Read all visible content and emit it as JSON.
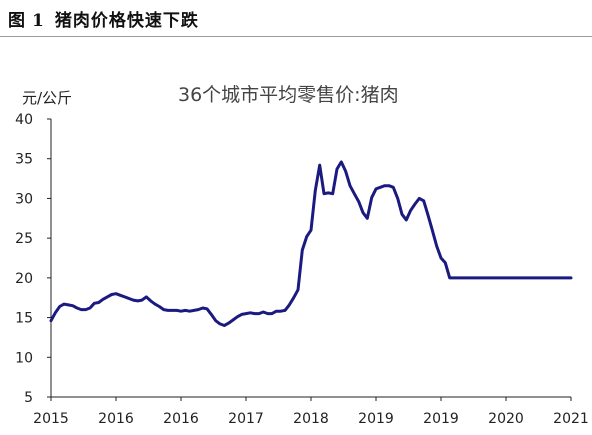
{
  "caption": {
    "label": "图",
    "number": "1",
    "text": "猪肉价格快速下跌"
  },
  "chart_data": {
    "type": "line",
    "title": "36个城市平均零售价:猪肉",
    "ylabel": "元/公斤",
    "xlabel": "",
    "ylim": [
      5,
      40
    ],
    "yticks": [
      5,
      10,
      15,
      20,
      25,
      30,
      35,
      40
    ],
    "xlim": [
      2015.0,
      2021.0
    ],
    "xtick_labels": [
      "2015",
      "2016",
      "2016",
      "2017",
      "2018",
      "2019",
      "2019",
      "2020",
      "2021"
    ],
    "grid": false,
    "legend": "none",
    "line_color": "#1a1a80",
    "series": [
      {
        "x": [
          2015.0,
          2015.05,
          2015.1,
          2015.15,
          2015.2,
          2015.25,
          2015.3,
          2015.35,
          2015.4,
          2015.45,
          2015.5,
          2015.55,
          2015.6,
          2015.65,
          2015.7,
          2015.75,
          2015.8,
          2015.85,
          2015.9,
          2015.95,
          2016.0,
          2016.05,
          2016.1,
          2016.15,
          2016.2,
          2016.25,
          2016.3,
          2016.35,
          2016.4,
          2016.45,
          2016.5,
          2016.55,
          2016.6,
          2016.65,
          2016.7,
          2016.75,
          2016.8,
          2016.85,
          2016.9,
          2016.95,
          2017.0,
          2017.05,
          2017.1,
          2017.15,
          2017.2,
          2017.25,
          2017.3,
          2017.35,
          2017.4,
          2017.45,
          2017.5,
          2017.55,
          2017.6,
          2017.65,
          2017.7,
          2017.75,
          2017.8,
          2017.85,
          2017.9,
          2017.95,
          2018.0,
          2018.05,
          2018.1,
          2018.15,
          2018.2,
          2018.25,
          2018.3,
          2018.35,
          2018.4,
          2018.45,
          2018.5,
          2018.55,
          2018.6,
          2018.65,
          2018.7,
          2018.75,
          2018.8,
          2018.85,
          2018.9,
          2018.95,
          2019.0,
          2019.05,
          2019.1,
          2019.15,
          2019.2,
          2019.25,
          2019.3,
          2019.35,
          2019.4,
          2019.45,
          2019.5,
          2019.55,
          2019.6,
          2019.65,
          2019.7,
          2019.75,
          2019.8,
          2019.85,
          2019.9,
          2019.95,
          2020.0,
          2020.05,
          2020.1,
          2020.15,
          2020.2,
          2020.25,
          2020.3,
          2020.35,
          2020.4,
          2020.45,
          2020.5,
          2020.55,
          2020.6,
          2020.65,
          2020.7,
          2020.75,
          2020.8,
          2020.85,
          2020.9,
          2020.95,
          2021.0
        ],
        "values": [
          14.6,
          15.6,
          16.4,
          16.7,
          16.6,
          16.5,
          16.2,
          16.0,
          16.0,
          16.2,
          16.8,
          16.9,
          17.3,
          17.6,
          17.9,
          18.0,
          17.8,
          17.6,
          17.4,
          17.2,
          17.1,
          17.2,
          17.6,
          17.1,
          16.7,
          16.4,
          16.0,
          15.9,
          15.9,
          15.9,
          15.8,
          15.9,
          15.8,
          15.9,
          16.0,
          16.2,
          16.1,
          15.4,
          14.6,
          14.2,
          14.0,
          14.3,
          14.7,
          15.1,
          15.4,
          15.5,
          15.6,
          15.5,
          15.5,
          15.7,
          15.5,
          15.5,
          15.8,
          15.8,
          15.9,
          16.6,
          17.5,
          18.5,
          23.5,
          25.2,
          26.0,
          31.0,
          34.2,
          30.6,
          30.7,
          30.6,
          33.7,
          34.6,
          33.4,
          31.6,
          30.6,
          29.6,
          28.2,
          27.5,
          30.1,
          31.2,
          31.4,
          31.6,
          31.6,
          31.4,
          30.0,
          28.0,
          27.3,
          28.5,
          29.3,
          30.0,
          29.7,
          27.9,
          26.0,
          24.0,
          22.5,
          21.9,
          20.0,
          20.0,
          20.0,
          20.0,
          20.0,
          20.0,
          20.0,
          20.0,
          20.0,
          20.0,
          20.0,
          20.0,
          20.0,
          20.0,
          20.0,
          20.0,
          20.0,
          20.0,
          20.0,
          20.0,
          20.0,
          20.0,
          20.0,
          20.0,
          20.0,
          20.0,
          20.0,
          20.0,
          20.0
        ]
      }
    ]
  }
}
